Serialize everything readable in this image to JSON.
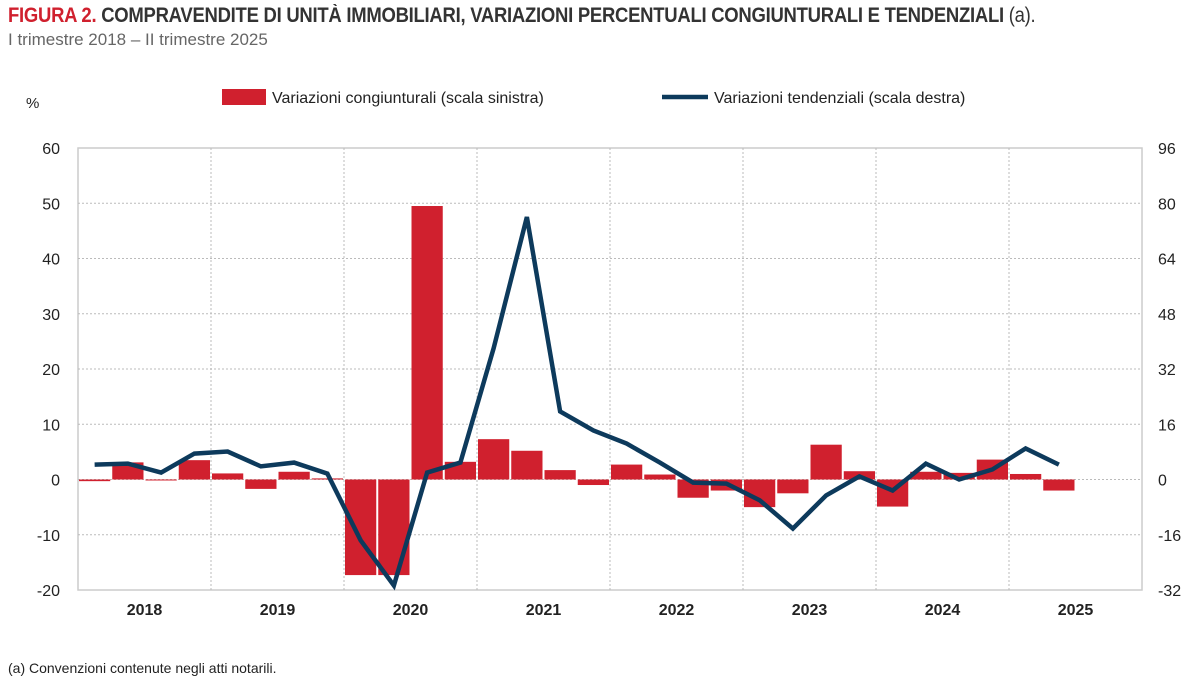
{
  "title": {
    "figure": "FIGURA 2.",
    "main": "COMPRAVENDITE DI UNITÀ IMMOBILIARI, VARIAZIONI PERCENTUALI CONGIUNTURALI E TENDENZIALI",
    "note": "(a)."
  },
  "subtitle": "I trimestre 2018 – II trimestre 2025",
  "footnote": "(a) Convenzioni contenute negli atti notarili.",
  "chart_data": {
    "type": "bar+line",
    "ylabel_left": "%",
    "ylim_left": [
      -20,
      60
    ],
    "yticks_left": [
      -20,
      -10,
      0,
      10,
      20,
      30,
      40,
      50,
      60
    ],
    "ylim_right": [
      -32,
      96
    ],
    "yticks_right": [
      -32,
      -16,
      0,
      16,
      32,
      48,
      64,
      80,
      96
    ],
    "year_labels": [
      "2018",
      "2019",
      "2020",
      "2021",
      "2022",
      "2023",
      "2024",
      "2025"
    ],
    "quarters": [
      "2018Q1",
      "2018Q2",
      "2018Q3",
      "2018Q4",
      "2019Q1",
      "2019Q2",
      "2019Q3",
      "2019Q4",
      "2020Q1",
      "2020Q2",
      "2020Q3",
      "2020Q4",
      "2021Q1",
      "2021Q2",
      "2021Q3",
      "2021Q4",
      "2022Q1",
      "2022Q2",
      "2022Q3",
      "2022Q4",
      "2023Q1",
      "2023Q2",
      "2023Q3",
      "2023Q4",
      "2024Q1",
      "2024Q2",
      "2024Q3",
      "2024Q4",
      "2025Q1",
      "2025Q2"
    ],
    "grid": true,
    "legend": "top",
    "series": [
      {
        "name": "Variazioni congiunturali (scala sinistra)",
        "type": "bar",
        "axis": "left",
        "color": "#d0202e",
        "values": [
          -0.3,
          3.1,
          0,
          3.5,
          1.1,
          -1.7,
          1.4,
          0.2,
          -17.3,
          -17.3,
          49.5,
          3.2,
          7.3,
          5.2,
          1.7,
          -1.0,
          2.7,
          0.9,
          -3.3,
          -2.0,
          -5.0,
          -2.5,
          6.3,
          1.5,
          -4.9,
          1.4,
          1.2,
          3.6,
          1.0,
          -2.0
        ]
      },
      {
        "name": "Variazioni tendenziali (scala destra)",
        "type": "line",
        "axis": "right",
        "color": "#0d3a5c",
        "values": [
          4.3,
          4.6,
          2.0,
          7.5,
          8.1,
          3.8,
          4.9,
          1.7,
          -17.6,
          -30.7,
          2.0,
          4.9,
          38,
          76,
          19.7,
          14.2,
          10.4,
          4.9,
          -0.9,
          -1.2,
          -6.0,
          -14.2,
          -4.6,
          0.9,
          -3.2,
          4.6,
          0,
          2.9,
          9.0,
          4.3
        ]
      }
    ]
  }
}
